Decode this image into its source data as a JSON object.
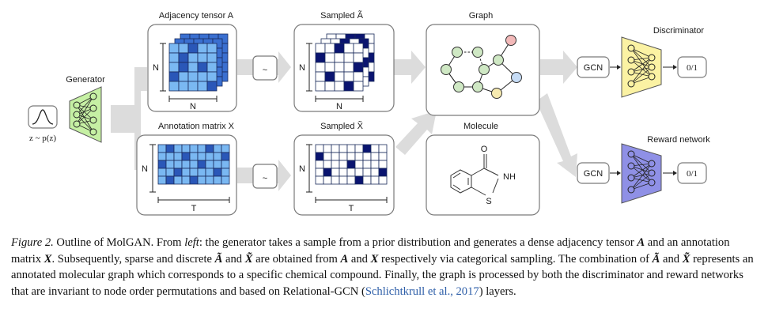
{
  "labels": {
    "generator": "Generator",
    "prior": "z ~ p(z)",
    "adjacency_title": "Adjacency tensor A",
    "annotation_title": "Annotation matrix X",
    "sampled_a": "Sampled Ã",
    "sampled_x": "Sampled X̃",
    "graph": "Graph",
    "molecule": "Molecule",
    "discriminator": "Discriminator",
    "reward_network": "Reward network",
    "gcn_top": "GCN",
    "gcn_bottom": "GCN",
    "out_top": "0/1",
    "out_bottom": "0/1",
    "tilde_top": "~",
    "tilde_bottom": "~",
    "dim_n": "N",
    "dim_t": "T",
    "atom_o": "O",
    "atom_nh": "NH",
    "atom_s": "S"
  },
  "caption": {
    "figure": "Figure 2.",
    "text_1": " Outline of MolGAN. From ",
    "left": "left",
    "text_2": ": the generator takes a sample from a prior distribution and generates a dense adjacency tensor ",
    "A": "A",
    "text_3": " and an annotation matrix ",
    "X": "X",
    "text_4": ". Subsequently, sparse and discrete ",
    "At": "Ã",
    "text_5": " and ",
    "Xt": "X̃",
    "text_6": " are obtained from ",
    "A2": "A",
    "text_7": " and ",
    "X2": "X",
    "text_8": " respectively via categorical sampling. The combination of ",
    "At2": "Ã",
    "text_9": " and ",
    "Xt2": "X̃",
    "text_10": " represents an annotated molecular graph which corresponds to a specific chemical compound. Finally, the graph is processed by both the discriminator and reward networks that are invariant to node order permutations and based on Relational-GCN (",
    "citation": "Schlichtkrull et al., 2017",
    "text_11": ") layers."
  },
  "colors": {
    "generator_fill": "#c6f0a4",
    "discriminator_fill": "#fbf2a3",
    "reward_fill": "#8f90e6",
    "dense_light": "#7ab8f2",
    "dense_dark": "#2a57b8",
    "sparse_dark": "#0a1470",
    "node_green": "#cfe8c4",
    "node_red": "#f3b9b9",
    "node_blue": "#c6dcf6",
    "node_yellow": "#f6eab0",
    "arrow": "#dcdcdc"
  }
}
